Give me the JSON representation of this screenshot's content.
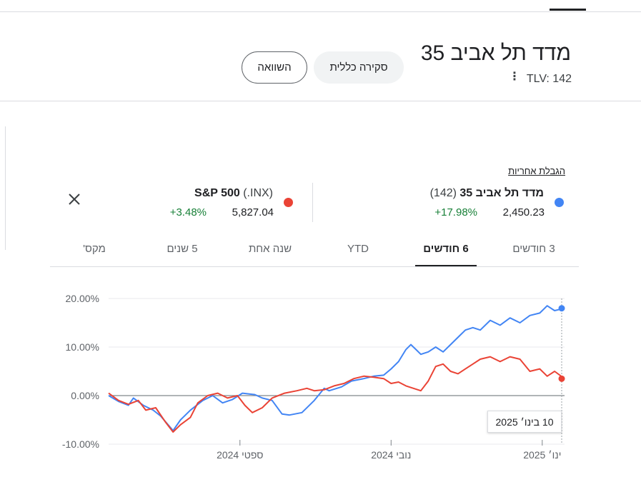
{
  "header": {
    "title": "מדד תל אביב 35",
    "ticker": "TLV: 142",
    "overview_label": "סקירה כללית",
    "compare_label": "השוואה"
  },
  "disclaimer": "הגבלת אחריות",
  "series_cards": [
    {
      "name": "מדד תל אביב 35",
      "code": "(142)",
      "price": "2,450.23",
      "change": "+17.98%",
      "color": "#4285f4"
    },
    {
      "name": "S&P 500",
      "code": "(.INX)",
      "price": "5,827.04",
      "change": "+3.48%",
      "color": "#ea4335"
    }
  ],
  "range_tabs": [
    {
      "label": "3 חודשים"
    },
    {
      "label": "6 חודשים"
    },
    {
      "label": "YTD"
    },
    {
      "label": "שנה אחת"
    },
    {
      "label": "5 שנים"
    },
    {
      "label": "מקס'"
    }
  ],
  "active_tab": "6 חודשים",
  "tooltip": "10 בינו׳ 2025",
  "chart_data": {
    "type": "line",
    "y_unit": "%",
    "ylim": [
      -10,
      20
    ],
    "yticks": [
      "20.00%",
      "10.00%",
      "0.00%",
      "-10.00%"
    ],
    "yvalues": [
      20,
      10,
      0,
      -10
    ],
    "xticks": [
      {
        "label": "ספטי 2024",
        "date": "2024-09-01"
      },
      {
        "label": "נובי 2024",
        "date": "2024-11-01"
      },
      {
        "label": "ינו׳ 2025",
        "date": "2025-01-01"
      }
    ],
    "xlim": [
      "2024-07-10",
      "2025-01-10"
    ],
    "baseline": 0,
    "grid": true,
    "series": [
      {
        "name": "מדד תל אביב 35",
        "color": "#4285f4",
        "points": [
          [
            "2024-07-10",
            0.0
          ],
          [
            "2024-07-14",
            -1.2
          ],
          [
            "2024-07-18",
            -2.0
          ],
          [
            "2024-07-20",
            -0.5
          ],
          [
            "2024-07-24",
            -2.0
          ],
          [
            "2024-07-28",
            -3.0
          ],
          [
            "2024-07-31",
            -4.2
          ],
          [
            "2024-08-03",
            -6.0
          ],
          [
            "2024-08-05",
            -7.2
          ],
          [
            "2024-08-08",
            -5.0
          ],
          [
            "2024-08-12",
            -3.0
          ],
          [
            "2024-08-17",
            -1.0
          ],
          [
            "2024-08-21",
            0.0
          ],
          [
            "2024-08-25",
            -1.5
          ],
          [
            "2024-08-29",
            -0.8
          ],
          [
            "2024-09-02",
            0.5
          ],
          [
            "2024-09-07",
            0.2
          ],
          [
            "2024-09-10",
            -0.5
          ],
          [
            "2024-09-14",
            -1.0
          ],
          [
            "2024-09-18",
            -3.8
          ],
          [
            "2024-09-21",
            -4.0
          ],
          [
            "2024-09-26",
            -3.5
          ],
          [
            "2024-10-01",
            -1.0
          ],
          [
            "2024-10-05",
            1.5
          ],
          [
            "2024-10-07",
            1.0
          ],
          [
            "2024-10-12",
            1.8
          ],
          [
            "2024-10-16",
            3.0
          ],
          [
            "2024-10-21",
            3.5
          ],
          [
            "2024-10-25",
            4.0
          ],
          [
            "2024-10-29",
            4.2
          ],
          [
            "2024-11-01",
            5.5
          ],
          [
            "2024-11-04",
            7.0
          ],
          [
            "2024-11-07",
            9.5
          ],
          [
            "2024-11-09",
            10.5
          ],
          [
            "2024-11-11",
            9.5
          ],
          [
            "2024-11-13",
            8.5
          ],
          [
            "2024-11-16",
            9.0
          ],
          [
            "2024-11-19",
            10.0
          ],
          [
            "2024-11-22",
            9.0
          ],
          [
            "2024-11-25",
            10.5
          ],
          [
            "2024-11-28",
            12.0
          ],
          [
            "2024-12-01",
            13.5
          ],
          [
            "2024-12-04",
            14.0
          ],
          [
            "2024-12-07",
            13.5
          ],
          [
            "2024-12-11",
            15.5
          ],
          [
            "2024-12-15",
            14.5
          ],
          [
            "2024-12-19",
            16.0
          ],
          [
            "2024-12-23",
            15.0
          ],
          [
            "2024-12-27",
            16.5
          ],
          [
            "2024-12-31",
            17.0
          ],
          [
            "2025-01-03",
            18.5
          ],
          [
            "2025-01-06",
            17.5
          ],
          [
            "2025-01-10",
            17.98
          ]
        ]
      },
      {
        "name": "S&P 500",
        "color": "#ea4335",
        "points": [
          [
            "2024-07-10",
            0.5
          ],
          [
            "2024-07-14",
            -1.0
          ],
          [
            "2024-07-18",
            -1.8
          ],
          [
            "2024-07-22",
            -1.0
          ],
          [
            "2024-07-25",
            -3.0
          ],
          [
            "2024-07-29",
            -2.5
          ],
          [
            "2024-08-02",
            -5.5
          ],
          [
            "2024-08-05",
            -7.5
          ],
          [
            "2024-08-08",
            -6.0
          ],
          [
            "2024-08-12",
            -4.5
          ],
          [
            "2024-08-15",
            -1.5
          ],
          [
            "2024-08-19",
            0.0
          ],
          [
            "2024-08-23",
            0.5
          ],
          [
            "2024-08-27",
            -0.5
          ],
          [
            "2024-08-31",
            0.0
          ],
          [
            "2024-09-03",
            -2.0
          ],
          [
            "2024-09-06",
            -3.5
          ],
          [
            "2024-09-10",
            -2.5
          ],
          [
            "2024-09-14",
            -0.5
          ],
          [
            "2024-09-19",
            0.5
          ],
          [
            "2024-09-24",
            1.0
          ],
          [
            "2024-09-28",
            1.5
          ],
          [
            "2024-10-01",
            1.0
          ],
          [
            "2024-10-05",
            1.2
          ],
          [
            "2024-10-09",
            2.0
          ],
          [
            "2024-10-13",
            2.5
          ],
          [
            "2024-10-17",
            3.5
          ],
          [
            "2024-10-21",
            4.0
          ],
          [
            "2024-10-25",
            3.8
          ],
          [
            "2024-10-29",
            3.5
          ],
          [
            "2024-11-01",
            2.5
          ],
          [
            "2024-11-04",
            2.8
          ],
          [
            "2024-11-07",
            2.0
          ],
          [
            "2024-11-10",
            1.5
          ],
          [
            "2024-11-13",
            1.0
          ],
          [
            "2024-11-16",
            3.0
          ],
          [
            "2024-11-19",
            6.0
          ],
          [
            "2024-11-22",
            6.5
          ],
          [
            "2024-11-25",
            5.0
          ],
          [
            "2024-11-28",
            4.5
          ],
          [
            "2024-12-01",
            5.5
          ],
          [
            "2024-12-04",
            6.5
          ],
          [
            "2024-12-07",
            7.5
          ],
          [
            "2024-12-11",
            8.0
          ],
          [
            "2024-12-15",
            7.0
          ],
          [
            "2024-12-19",
            8.0
          ],
          [
            "2024-12-23",
            7.5
          ],
          [
            "2024-12-27",
            5.0
          ],
          [
            "2024-12-31",
            5.5
          ],
          [
            "2025-01-03",
            4.0
          ],
          [
            "2025-01-06",
            5.0
          ],
          [
            "2025-01-10",
            3.48
          ]
        ]
      }
    ]
  }
}
